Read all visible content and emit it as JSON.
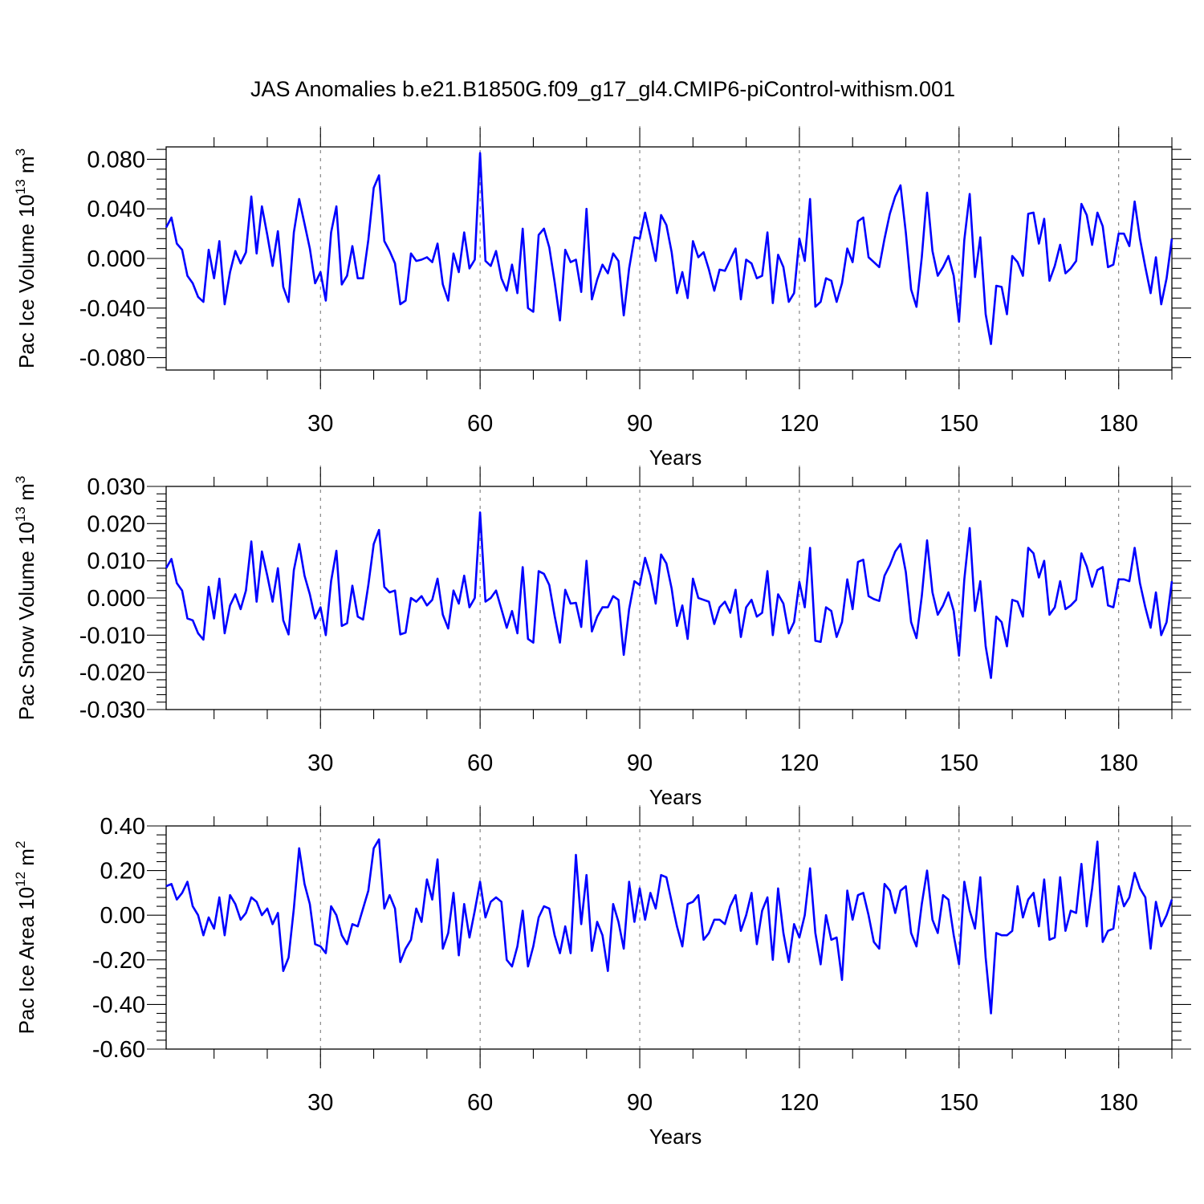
{
  "title": "JAS Anomalies b.e21.B1850G.f09_g17_gl4.CMIP6-piControl-withism.001",
  "colors": {
    "line": "#0000ff",
    "axis": "#000000",
    "grid": "#6f6f6f",
    "background": "#ffffff"
  },
  "chart_data": [
    {
      "type": "line",
      "xlabel": "Years",
      "ylabel": "Pac Ice Volume 10",
      "ylabel_exponent": "13",
      "ylabel_unit": "m",
      "ylabel_unit_exponent": "3",
      "xlim": [
        1,
        190
      ],
      "ylim": [
        -0.09,
        0.09
      ],
      "xticks": [
        30,
        60,
        90,
        120,
        150,
        180
      ],
      "xtick_labels": [
        "30",
        "60",
        "90",
        "120",
        "150",
        "180"
      ],
      "yticks": [
        0.08,
        0.04,
        0.0,
        -0.04,
        -0.08
      ],
      "ytick_labels": [
        "0.080",
        "0.040",
        "0.000",
        "-0.040",
        "-0.080"
      ],
      "grid": "vertical dashed at x ticks",
      "values": [
        0.025,
        0.033,
        0.012,
        0.007,
        -0.014,
        -0.02,
        -0.031,
        -0.035,
        0.007,
        -0.016,
        0.014,
        -0.037,
        -0.011,
        0.006,
        -0.004,
        0.005,
        0.05,
        0.004,
        0.042,
        0.019,
        -0.006,
        0.022,
        -0.023,
        -0.035,
        0.021,
        0.048,
        0.028,
        0.008,
        -0.02,
        -0.011,
        -0.034,
        0.021,
        0.042,
        -0.021,
        -0.014,
        0.01,
        -0.016,
        -0.016,
        0.015,
        0.057,
        0.067,
        0.014,
        0.006,
        -0.004,
        -0.037,
        -0.034,
        0.004,
        -0.002,
        -0.001,
        0.001,
        -0.003,
        0.012,
        -0.021,
        -0.034,
        0.004,
        -0.011,
        0.021,
        -0.008,
        -0.001,
        0.085,
        -0.002,
        -0.006,
        0.006,
        -0.016,
        -0.026,
        -0.005,
        -0.028,
        0.024,
        -0.04,
        -0.043,
        0.019,
        0.024,
        0.009,
        -0.019,
        -0.05,
        0.007,
        -0.003,
        -0.001,
        -0.027,
        0.04,
        -0.033,
        -0.017,
        -0.005,
        -0.012,
        0.004,
        -0.002,
        -0.046,
        -0.008,
        0.017,
        0.016,
        0.037,
        0.018,
        -0.002,
        0.035,
        0.027,
        0.005,
        -0.028,
        -0.011,
        -0.032,
        0.014,
        0.001,
        0.005,
        -0.009,
        -0.026,
        -0.009,
        -0.01,
        -0.001,
        0.008,
        -0.033,
        -0.001,
        -0.004,
        -0.016,
        -0.014,
        0.021,
        -0.036,
        0.003,
        -0.007,
        -0.035,
        -0.028,
        0.016,
        -0.002,
        0.048,
        -0.039,
        -0.035,
        -0.016,
        -0.018,
        -0.035,
        -0.02,
        0.008,
        -0.003,
        0.03,
        0.033,
        0.001,
        -0.003,
        -0.007,
        0.016,
        0.036,
        0.05,
        0.059,
        0.021,
        -0.025,
        -0.039,
        0.001,
        0.053,
        0.006,
        -0.014,
        -0.007,
        0.002,
        -0.014,
        -0.051,
        0.015,
        0.052,
        -0.015,
        0.017,
        -0.045,
        -0.069,
        -0.022,
        -0.023,
        -0.045,
        0.002,
        -0.003,
        -0.014,
        0.036,
        0.037,
        0.012,
        0.032,
        -0.018,
        -0.006,
        0.011,
        -0.012,
        -0.008,
        -0.002,
        0.044,
        0.035,
        0.011,
        0.037,
        0.026,
        -0.007,
        -0.005,
        0.02,
        0.02,
        0.01,
        0.046,
        0.016,
        -0.007,
        -0.028,
        0.001,
        -0.037,
        -0.016,
        0.016
      ]
    },
    {
      "type": "line",
      "xlabel": "Years",
      "ylabel": "Pac Snow Volume 10",
      "ylabel_exponent": "13",
      "ylabel_unit": "m",
      "ylabel_unit_exponent": "3",
      "xlim": [
        1,
        190
      ],
      "ylim": [
        -0.03,
        0.03
      ],
      "xticks": [
        30,
        60,
        90,
        120,
        150,
        180
      ],
      "xtick_labels": [
        "30",
        "60",
        "90",
        "120",
        "150",
        "180"
      ],
      "yticks": [
        0.03,
        0.02,
        0.01,
        0.0,
        -0.01,
        -0.02,
        -0.03
      ],
      "ytick_labels": [
        "0.030",
        "0.020",
        "0.010",
        "0.000",
        "-0.010",
        "-0.020",
        "-0.030"
      ],
      "grid": "vertical dashed at x ticks",
      "values": [
        0.008,
        0.0105,
        0.004,
        0.002,
        -0.0055,
        -0.006,
        -0.0095,
        -0.0112,
        0.003,
        -0.0055,
        0.0052,
        -0.0095,
        -0.002,
        0.001,
        -0.003,
        0.002,
        0.0152,
        -0.001,
        0.0125,
        0.006,
        -0.001,
        0.008,
        -0.006,
        -0.0098,
        0.0075,
        0.0145,
        0.006,
        0.001,
        -0.0055,
        -0.0025,
        -0.01,
        0.0045,
        0.0127,
        -0.0075,
        -0.0068,
        0.0033,
        -0.005,
        -0.0058,
        0.0035,
        0.0145,
        0.0183,
        0.003,
        0.0015,
        0.002,
        -0.0098,
        -0.0093,
        0.0,
        -0.001,
        0.0005,
        -0.002,
        -0.0005,
        0.0052,
        -0.0045,
        -0.0082,
        0.002,
        -0.0015,
        0.006,
        -0.0025,
        0.0,
        0.023,
        -0.001,
        0.0,
        0.002,
        -0.003,
        -0.008,
        -0.0035,
        -0.0095,
        0.0083,
        -0.011,
        -0.012,
        0.0072,
        0.0065,
        0.0035,
        -0.0048,
        -0.012,
        0.0022,
        -0.0015,
        -0.0013,
        -0.0078,
        0.01,
        -0.009,
        -0.005,
        -0.0025,
        -0.0025,
        0.0005,
        -0.0005,
        -0.0153,
        -0.003,
        0.0045,
        0.0035,
        0.0108,
        0.006,
        -0.0015,
        0.0117,
        0.0093,
        0.0025,
        -0.0075,
        -0.002,
        -0.011,
        0.0052,
        0.0,
        -0.0005,
        -0.001,
        -0.007,
        -0.0025,
        -0.001,
        -0.004,
        0.0022,
        -0.0105,
        -0.0025,
        -0.0005,
        -0.005,
        -0.004,
        0.0072,
        -0.01,
        0.001,
        -0.0015,
        -0.0095,
        -0.0065,
        0.0043,
        -0.0025,
        0.0135,
        -0.0115,
        -0.0118,
        -0.0025,
        -0.0035,
        -0.0105,
        -0.0065,
        0.005,
        -0.003,
        0.0097,
        0.0103,
        0.0005,
        -0.0003,
        -0.0008,
        0.006,
        0.0088,
        0.0125,
        0.0145,
        0.007,
        -0.0065,
        -0.0108,
        0.0005,
        0.0155,
        0.0015,
        -0.0045,
        -0.002,
        0.0015,
        -0.0035,
        -0.0155,
        0.005,
        0.0188,
        -0.0035,
        0.0045,
        -0.013,
        -0.0215,
        -0.005,
        -0.0065,
        -0.013,
        -0.0005,
        -0.001,
        -0.005,
        0.0135,
        0.012,
        0.0055,
        0.01,
        -0.0045,
        -0.0025,
        0.0045,
        -0.003,
        -0.002,
        -0.0005,
        0.012,
        0.0085,
        0.003,
        0.0075,
        0.0083,
        -0.002,
        -0.0025,
        0.005,
        0.005,
        0.0045,
        0.0135,
        0.004,
        -0.0025,
        -0.008,
        0.0015,
        -0.01,
        -0.0065,
        0.0045
      ]
    },
    {
      "type": "line",
      "xlabel": "Years",
      "ylabel": "Pac Ice Area 10",
      "ylabel_exponent": "12",
      "ylabel_unit": "m",
      "ylabel_unit_exponent": "2",
      "xlim": [
        1,
        190
      ],
      "ylim": [
        -0.6,
        0.4
      ],
      "xticks": [
        30,
        60,
        90,
        120,
        150,
        180
      ],
      "xtick_labels": [
        "30",
        "60",
        "90",
        "120",
        "150",
        "180"
      ],
      "yticks": [
        0.4,
        0.2,
        0.0,
        -0.2,
        -0.4,
        -0.6
      ],
      "ytick_labels": [
        "0.40",
        "0.20",
        "0.00",
        "-0.20",
        "-0.40",
        "-0.60"
      ],
      "grid": "vertical dashed at x ticks",
      "values": [
        0.13,
        0.14,
        0.07,
        0.1,
        0.15,
        0.04,
        0.0,
        -0.09,
        -0.01,
        -0.06,
        0.08,
        -0.09,
        0.09,
        0.05,
        -0.02,
        0.01,
        0.08,
        0.06,
        0.0,
        0.03,
        -0.04,
        0.01,
        -0.25,
        -0.19,
        0.03,
        0.3,
        0.14,
        0.05,
        -0.13,
        -0.14,
        -0.17,
        0.04,
        0.0,
        -0.09,
        -0.13,
        -0.04,
        -0.05,
        0.03,
        0.11,
        0.3,
        0.34,
        0.03,
        0.09,
        0.03,
        -0.21,
        -0.15,
        -0.11,
        0.03,
        -0.03,
        0.16,
        0.07,
        0.25,
        -0.15,
        -0.08,
        0.1,
        -0.18,
        0.05,
        -0.1,
        0.02,
        0.15,
        -0.01,
        0.06,
        0.08,
        0.06,
        -0.2,
        -0.23,
        -0.14,
        0.02,
        -0.23,
        -0.14,
        -0.01,
        0.04,
        0.03,
        -0.09,
        -0.17,
        -0.05,
        -0.17,
        0.27,
        -0.04,
        0.18,
        -0.16,
        -0.03,
        -0.09,
        -0.25,
        0.05,
        -0.03,
        -0.15,
        0.15,
        -0.03,
        0.12,
        -0.02,
        0.1,
        0.03,
        0.18,
        0.17,
        0.06,
        -0.05,
        -0.14,
        0.05,
        0.06,
        0.09,
        -0.11,
        -0.08,
        -0.02,
        -0.02,
        -0.04,
        0.04,
        0.09,
        -0.07,
        0.0,
        0.1,
        -0.13,
        0.02,
        0.08,
        -0.2,
        0.12,
        -0.08,
        -0.21,
        -0.04,
        -0.1,
        0.0,
        0.21,
        -0.08,
        -0.22,
        0.0,
        -0.11,
        -0.1,
        -0.29,
        0.11,
        -0.02,
        0.09,
        0.1,
        0.0,
        -0.12,
        -0.15,
        0.14,
        0.11,
        0.01,
        0.11,
        0.13,
        -0.08,
        -0.14,
        0.05,
        0.2,
        -0.02,
        -0.08,
        0.09,
        0.07,
        -0.09,
        -0.22,
        0.15,
        0.02,
        -0.06,
        0.17,
        -0.19,
        -0.44,
        -0.08,
        -0.09,
        -0.09,
        -0.07,
        0.13,
        -0.01,
        0.07,
        0.1,
        -0.05,
        0.16,
        -0.11,
        -0.1,
        0.17,
        -0.07,
        0.02,
        0.01,
        0.23,
        -0.05,
        0.12,
        0.33,
        -0.12,
        -0.07,
        -0.06,
        0.13,
        0.04,
        0.08,
        0.19,
        0.12,
        0.08,
        -0.15,
        0.06,
        -0.05,
        0.0,
        0.07
      ]
    }
  ]
}
